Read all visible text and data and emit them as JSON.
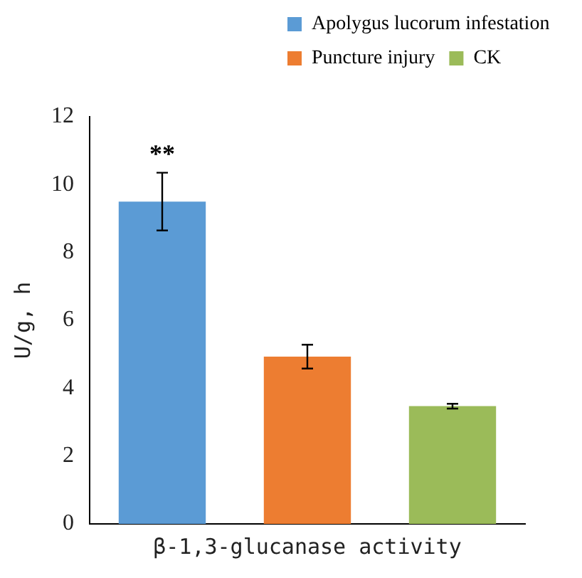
{
  "chart_data": {
    "type": "bar",
    "categories": [
      null,
      "β-1,3-glucanase activity",
      null
    ],
    "ylabel": "U/g, h",
    "series": [
      {
        "name": "Apolygus lucorum infestation",
        "color": "#5b9bd5",
        "values": [
          9.5,
          null,
          null
        ],
        "errors": [
          0.85,
          null,
          null
        ]
      },
      {
        "name": "Puncture injury",
        "color": "#ed7d31",
        "values": [
          null,
          4.93,
          null
        ],
        "errors": [
          null,
          0.35,
          null
        ]
      },
      {
        "name": "CK",
        "color": "#9bbb59",
        "values": [
          null,
          null,
          3.47
        ],
        "errors": [
          null,
          null,
          0.07
        ]
      }
    ],
    "ylim": [
      0,
      12
    ],
    "yticks": [
      0,
      2,
      4,
      6,
      8,
      10,
      12
    ],
    "grid": false,
    "legend": "top right",
    "annotations": [
      "**"
    ]
  }
}
